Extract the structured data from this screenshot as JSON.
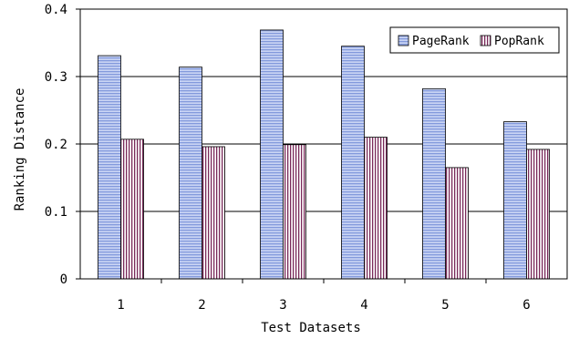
{
  "chart_data": {
    "type": "bar",
    "xlabel": "Test Datasets",
    "ylabel": "Ranking Distance",
    "categories": [
      "1",
      "2",
      "3",
      "4",
      "5",
      "6"
    ],
    "ylim": [
      0,
      0.4
    ],
    "yticks": [
      "0",
      "0.1",
      "0.2",
      "0.3",
      "0.4"
    ],
    "grid": true,
    "legend_position": "top-right",
    "series": [
      {
        "name": "PageRank",
        "values": [
          0.331,
          0.314,
          0.369,
          0.345,
          0.282,
          0.233
        ],
        "color": "#9fb3e8",
        "pattern": "horizontal-lines"
      },
      {
        "name": "PopRank",
        "values": [
          0.207,
          0.196,
          0.199,
          0.21,
          0.165,
          0.192
        ],
        "color": "#8a3a6a",
        "pattern": "vertical-lines"
      }
    ]
  }
}
